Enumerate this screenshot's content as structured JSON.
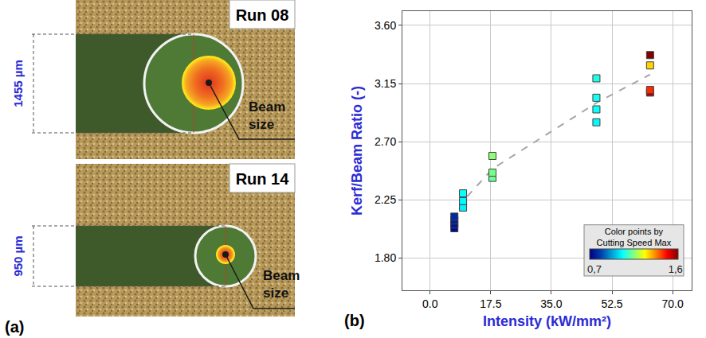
{
  "panel_a": {
    "label": "(a)",
    "images": [
      {
        "run": "Run 08",
        "dimension": "1455 µm",
        "beam_label": "Beam size"
      },
      {
        "run": "Run 14",
        "dimension": "950 µm",
        "beam_label": "Beam size"
      }
    ]
  },
  "panel_b": {
    "label": "(b)"
  },
  "chart_data": {
    "type": "scatter",
    "x_label": "Intensity (kW/mm²)",
    "y_label": "Kerf/Beam Ratio (-)",
    "xlim": [
      -8,
      75.5
    ],
    "ylim": [
      1.55,
      3.71
    ],
    "xticks": [
      {
        "value": 0,
        "label": "0.0"
      },
      17.5,
      {
        "value": 35,
        "label": "35.0"
      },
      52.5,
      {
        "value": 70,
        "label": "70.0"
      }
    ],
    "yticks": [
      {
        "value": 1.8,
        "label": "1.80"
      },
      2.25,
      {
        "value": 2.7,
        "label": "2.70"
      },
      3.15,
      {
        "value": 3.6,
        "label": "3.60"
      }
    ],
    "grid": true,
    "series": [
      {
        "type": "line",
        "line_style": "dashed",
        "color": "#a6a6a6",
        "x": [
          7,
          9.5,
          18,
          48,
          63.5
        ],
        "values": [
          2.08,
          2.24,
          2.49,
          3.0,
          3.22
        ]
      },
      {
        "type": "scatter",
        "marker": "square",
        "x": [
          7,
          7,
          7,
          7,
          9.5,
          9.5,
          9.5,
          18,
          18,
          18,
          48,
          48,
          48,
          48,
          63.5,
          63.5,
          63.5,
          63.5
        ],
        "values": [
          2.03,
          2.06,
          2.09,
          2.12,
          2.19,
          2.24,
          2.3,
          2.42,
          2.46,
          2.59,
          2.85,
          2.95,
          3.04,
          3.19,
          3.08,
          3.1,
          3.29,
          3.37
        ],
        "speed": [
          0.72,
          0.74,
          0.76,
          0.78,
          1.02,
          1.03,
          1.04,
          1.13,
          1.14,
          1.16,
          1.03,
          1.04,
          1.05,
          1.06,
          1.55,
          1.45,
          1.3,
          1.6
        ]
      }
    ],
    "colorbar": {
      "title": "Color points by Cutting Speed Max",
      "range": [
        0.7,
        1.6
      ],
      "ticks": [
        {
          "value": 0.7,
          "label": "0,7"
        },
        {
          "value": 1.6,
          "label": "1,6"
        }
      ]
    }
  }
}
